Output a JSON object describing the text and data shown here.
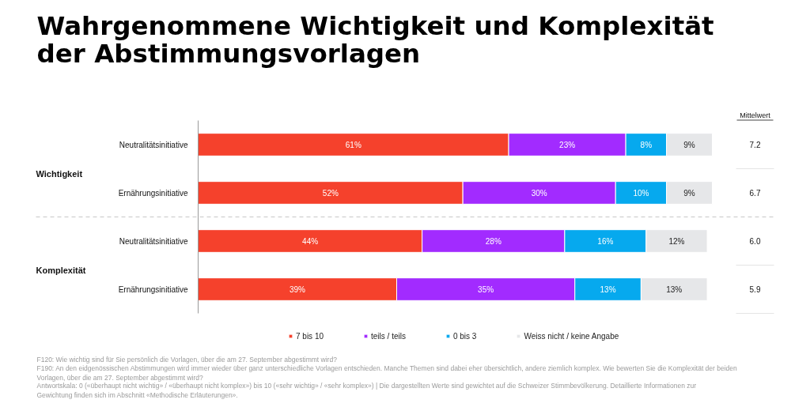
{
  "chart_data": {
    "type": "bar",
    "orientation": "horizontal",
    "stacked": true,
    "title": "Wahrgenommene Wichtigkeit und Komplexität der Abstimmungsvorlagen",
    "categories": [
      "Neutralitätsinitiative",
      "Ernährungsinitiative",
      "Neutralitätsinitiative",
      "Ernährungsinitiative"
    ],
    "series": [
      {
        "name": "7 bis 10",
        "color": "#f5412c",
        "values": [
          61,
          52,
          44,
          39
        ],
        "value_labels": [
          "61%",
          "52%",
          "44%",
          "39%"
        ]
      },
      {
        "name": "teils / teils",
        "color": "#a22bff",
        "values": [
          23,
          30,
          28,
          35
        ],
        "value_labels": [
          "23%",
          "30%",
          "28%",
          "35%"
        ]
      },
      {
        "name": "0 bis 3",
        "color": "#06a9ee",
        "values": [
          8,
          10,
          16,
          13
        ],
        "value_labels": [
          "8%",
          "10%",
          "16%",
          "13%"
        ]
      },
      {
        "name": "Weiss nicht / keine Angabe",
        "color": "#e6e7e9",
        "values": [
          9,
          9,
          12,
          13
        ],
        "value_labels": [
          "9%",
          "9%",
          "12%",
          "13%"
        ]
      }
    ],
    "xlim": [
      0,
      101
    ],
    "tick_labels": "y",
    "grid": false,
    "legend": "bottom",
    "annotations": [
      "Wichtigkeit",
      "Komplexität",
      "Mittelwert",
      "7.2",
      "6.7",
      "6.0",
      "5.9",
      "F120: Wie wichtig sind für Sie persönlich die Vorlagen, über die am 27. September abgestimmt wird?",
      "F190: An den eidgenössischen Abstimmungen wird immer wieder über ganz unterschiedliche Vorlagen entschieden. Manche Themen sind dabei eher übersichtlich, andere ziemlich komplex. Wie bewerten Sie die Komplexität der beiden Vorlagen, über die am 27. September abgestimmt wird?",
      "Antwortskala: 0 («überhaupt nicht wichtig» / «überhaupt nicht komplex») bis 10 («sehr wichtig» / «sehr komplex») | Die dargestellten Werte sind gewichtet auf die Schweizer Stimmbevölkerung. Detaillierte Informationen zur Gewichtung finden sich im Abschnitt «Methodische Erläuterungen»."
    ]
  }
}
